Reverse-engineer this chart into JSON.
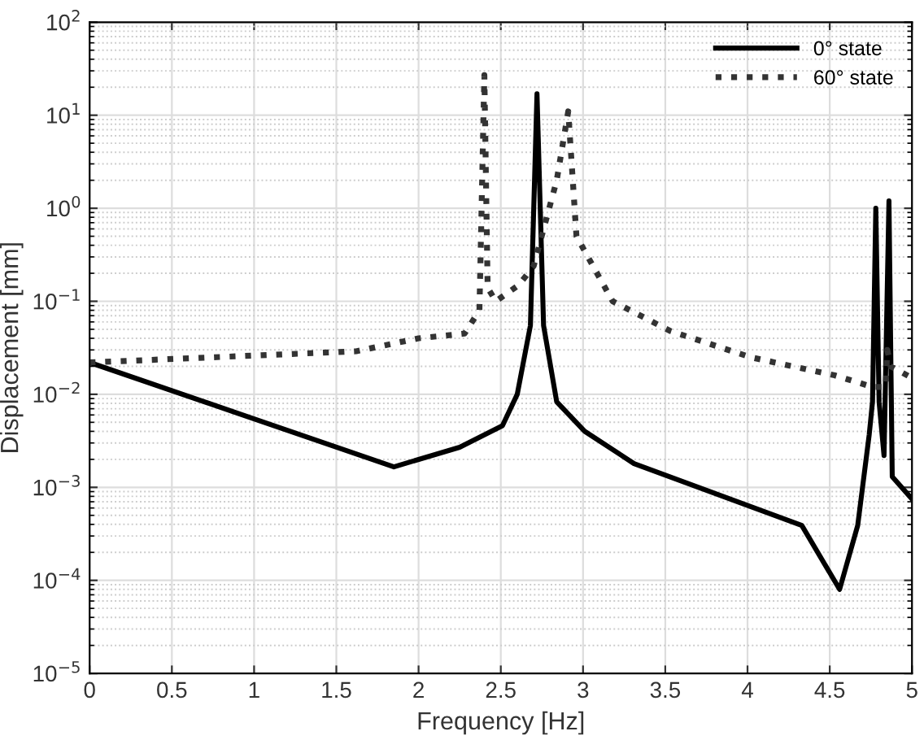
{
  "chart_data": {
    "type": "line",
    "xlabel": "Frequency [Hz]",
    "ylabel": "Displacement [mm]",
    "log": "y",
    "grid": true,
    "legend": "top right",
    "xlim": [
      0,
      5
    ],
    "ylim": [
      1e-05,
      100
    ],
    "xticks": [
      0,
      0.5,
      1,
      1.5,
      2,
      2.5,
      3,
      3.5,
      4,
      4.5,
      5
    ],
    "yticks": [
      {
        "value": 1e-05,
        "label": "10$^{−5}$"
      },
      {
        "value": 0.0001,
        "label": "10$^{−4}$"
      },
      {
        "value": 0.001,
        "label": "10$^{−3}$"
      },
      {
        "value": 0.01,
        "label": "10$^{−2}$"
      },
      {
        "value": 0.1,
        "label": "10$^{−1}$"
      },
      {
        "value": 1,
        "label": "10$^{0}$"
      },
      {
        "value": 10,
        "label": "10$^{1}$"
      },
      {
        "value": 100,
        "label": "10$^{2}$"
      }
    ],
    "series": [
      {
        "name": "0° state",
        "color": "#000000",
        "line_style": "solid",
        "x": [
          0,
          1.85,
          2.25,
          2.51,
          2.6,
          2.68,
          2.72,
          2.76,
          2.84,
          3.01,
          3.31,
          4.33,
          4.56,
          4.67,
          4.74,
          4.76,
          4.78,
          4.8,
          4.83,
          4.86,
          4.88,
          5.0
        ],
        "values": [
          0.022,
          0.00166,
          0.0027,
          0.0046,
          0.01,
          0.055,
          17,
          0.055,
          0.0083,
          0.004,
          0.0018,
          0.00039,
          8e-05,
          0.00039,
          0.0037,
          0.0083,
          1.0,
          0.0083,
          0.0022,
          1.2,
          0.0013,
          0.00075
        ]
      },
      {
        "name": "60° state",
        "color": "#333333",
        "line_style": "dotted",
        "x": [
          0,
          1.62,
          2.0,
          2.28,
          2.37,
          2.4,
          2.42,
          2.47,
          2.61,
          2.7,
          2.84,
          2.91,
          2.96,
          3.18,
          3.53,
          4.02,
          4.53,
          4.76,
          4.84,
          4.85,
          4.87,
          5.0
        ],
        "values": [
          0.022,
          0.029,
          0.04,
          0.045,
          0.08,
          27,
          0.14,
          0.1,
          0.15,
          0.24,
          2,
          11,
          0.5,
          0.1,
          0.048,
          0.025,
          0.016,
          0.012,
          0.012,
          0.03,
          0.02,
          0.015
        ]
      }
    ]
  }
}
